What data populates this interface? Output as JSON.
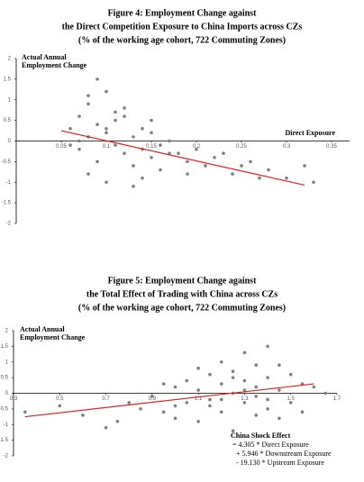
{
  "chart_data": [
    {
      "type": "scatter",
      "title": [
        "Figure 4: Employment Change against",
        "the Direct Competition Exposure to China Imports across CZs",
        "(% of the working age cohort, 722 Commuting Zones)"
      ],
      "y_label": [
        "Actual Annual",
        "Employment Change"
      ],
      "x_label": "Direct Exposure",
      "xlim": [
        0,
        0.37
      ],
      "ylim": [
        -2,
        2
      ],
      "xticks": [
        0.05,
        0.1,
        0.15,
        0.2,
        0.25,
        0.3,
        0.35
      ],
      "yticks": [
        2,
        1.5,
        1,
        0.5,
        0,
        -0.5,
        -1,
        -1.5,
        -2
      ],
      "series": [
        {
          "type": "scatter",
          "color": "#808080",
          "x": [
            0.06,
            0.07,
            0.07,
            0.08,
            0.08,
            0.09,
            0.09,
            0.1,
            0.1,
            0.11,
            0.11,
            0.12,
            0.12,
            0.13,
            0.13,
            0.14,
            0.14,
            0.15,
            0.15,
            0.16,
            0.16,
            0.17,
            0.18,
            0.19,
            0.2,
            0.21,
            0.22,
            0.24,
            0.26,
            0.28,
            0.3,
            0.32,
            0.33,
            0.06,
            0.08,
            0.1,
            0.12,
            0.14,
            0.09,
            0.11,
            0.07,
            0.13,
            0.15,
            0.17,
            0.19,
            0.23,
            0.25,
            0.27,
            0.08,
            0.1
          ],
          "values": [
            0.3,
            0.6,
            -0.2,
            0.9,
            0.1,
            0.4,
            -0.5,
            1.2,
            0.2,
            -0.1,
            0.5,
            0.8,
            -0.3,
            0.1,
            -0.6,
            0.3,
            -0.2,
            -0.4,
            0.2,
            -0.1,
            -0.7,
            0.0,
            -0.3,
            -0.5,
            -0.2,
            -0.6,
            -0.4,
            -0.8,
            -0.5,
            -0.7,
            -0.9,
            -0.6,
            -1.0,
            -0.1,
            -0.8,
            -1.0,
            0.6,
            -0.9,
            1.5,
            0.7,
            0.0,
            -1.1,
            0.5,
            -0.3,
            -0.8,
            -0.3,
            -0.6,
            -0.9,
            1.1,
            0.3
          ]
        },
        {
          "type": "line",
          "color": "#e02020",
          "x": [
            0.05,
            0.32
          ],
          "values": [
            0.25,
            -1.07
          ]
        }
      ]
    },
    {
      "type": "scatter",
      "title": [
        "Figure 5: Employment Change against",
        "the Total Effect of Trading with China across CZs",
        "(% of the working age cohort, 722 Commuting Zones)"
      ],
      "y_label": [
        "Actual Annual",
        "Employment Change"
      ],
      "x_label": "China Shock Effect",
      "annotation": [
        "= 4.305 * Direct Exposure",
        "+ 5.946 * Downstream Exposure",
        "- 19.130 * Upstream Exposure"
      ],
      "xlim": [
        0.3,
        1.7
      ],
      "ylim": [
        -2,
        2
      ],
      "xticks": [
        0.3,
        0.5,
        0.7,
        0.9,
        1.1,
        1.3,
        1.5,
        1.7
      ],
      "yticks": [
        2,
        1.5,
        1,
        0.5,
        0,
        -0.5,
        -1,
        -1.5,
        -2
      ],
      "series": [
        {
          "type": "scatter",
          "color": "#808080",
          "x": [
            0.35,
            0.5,
            0.6,
            0.75,
            0.8,
            0.85,
            0.9,
            0.95,
            1.0,
            1.0,
            1.05,
            1.05,
            1.1,
            1.1,
            1.15,
            1.15,
            1.2,
            1.2,
            1.2,
            1.25,
            1.25,
            1.25,
            1.3,
            1.3,
            1.3,
            1.35,
            1.35,
            1.35,
            1.4,
            1.4,
            1.4,
            1.45,
            1.45,
            1.5,
            1.5,
            1.55,
            1.55,
            1.6,
            1.65,
            1.0,
            1.1,
            1.2,
            1.3,
            1.4,
            1.25,
            1.35,
            0.95,
            1.15,
            1.45,
            0.7
          ],
          "values": [
            -0.6,
            -0.4,
            -0.7,
            -0.9,
            -0.3,
            -0.5,
            -0.1,
            -0.6,
            0.2,
            -0.8,
            -0.3,
            0.4,
            0.1,
            -0.9,
            -0.4,
            0.6,
            0.3,
            -0.6,
            1.0,
            0.0,
            -1.2,
            0.7,
            0.4,
            -0.3,
            1.3,
            0.2,
            -0.7,
            0.9,
            0.5,
            -0.2,
            1.5,
            0.1,
            -0.8,
            0.6,
            -0.3,
            0.3,
            -0.6,
            0.2,
            0.0,
            -0.4,
            0.8,
            -0.2,
            0.1,
            -0.5,
            0.5,
            -0.1,
            0.3,
            -0.2,
            0.9,
            -1.1
          ]
        },
        {
          "type": "line",
          "color": "#e02020",
          "x": [
            0.35,
            1.6
          ],
          "values": [
            -0.75,
            0.3
          ]
        }
      ]
    }
  ]
}
